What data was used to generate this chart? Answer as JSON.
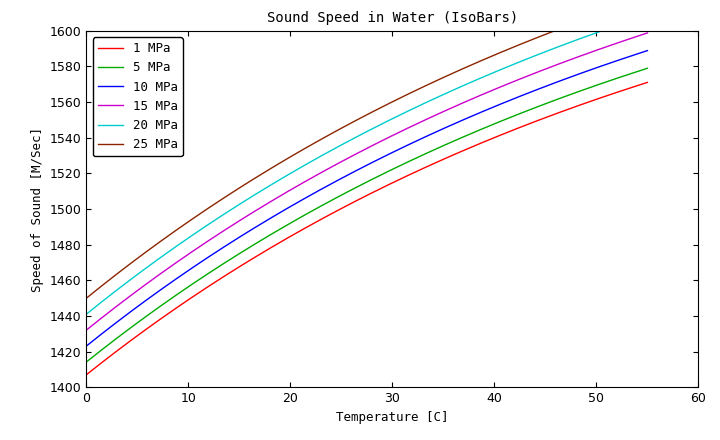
{
  "title": "Sound Speed in Water (IsoBars)",
  "xlabel": "Temperature [C]",
  "ylabel": "Speed of Sound [M/Sec]",
  "xlim": [
    0,
    60
  ],
  "ylim": [
    1400,
    1600
  ],
  "xticks": [
    0,
    10,
    20,
    30,
    40,
    50,
    60
  ],
  "yticks": [
    1400,
    1420,
    1440,
    1460,
    1480,
    1500,
    1520,
    1540,
    1560,
    1580,
    1600
  ],
  "pressures_MPa": [
    1,
    5,
    10,
    15,
    20,
    25
  ],
  "colors": [
    "#ff0000",
    "#00aa00",
    "#0000ff",
    "#cc00cc",
    "#00cccc",
    "#8b2500"
  ],
  "background_color": "#ffffff",
  "title_fontsize": 10,
  "label_fontsize": 9,
  "tick_fontsize": 9,
  "legend_fontsize": 9,
  "linewidth": 1.0
}
